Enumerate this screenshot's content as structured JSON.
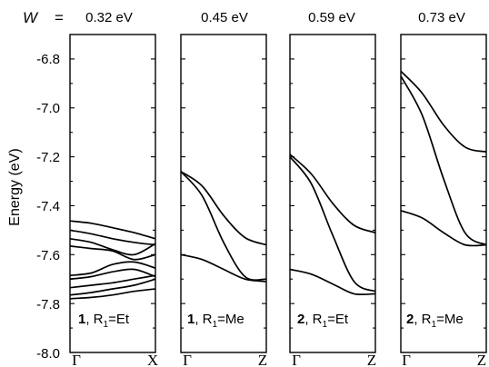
{
  "chart_data": {
    "type": "line",
    "w_symbol": "W",
    "w_equals": "=",
    "ylabel": "Energy (eV)",
    "ylim": [
      -8.0,
      -6.7
    ],
    "yticks": [
      "-6.8",
      "-7.0",
      "-7.2",
      "-7.4",
      "-7.6",
      "-7.8",
      "-8.0"
    ],
    "ytick_values": [
      -6.8,
      -7.0,
      -7.2,
      -7.4,
      -7.6,
      -7.8,
      -8.0
    ],
    "panels": [
      {
        "w_value": "0.32 eV",
        "label_num": "1",
        "label_mid": ", R",
        "label_sub": "1",
        "label_rest": "=Et",
        "x_start": "Γ",
        "x_end": "X",
        "series": [
          {
            "x": [
              0,
              0.25,
              0.5,
              0.75,
              1
            ],
            "y": [
              -7.462,
              -7.472,
              -7.49,
              -7.51,
              -7.535
            ]
          },
          {
            "x": [
              0,
              0.25,
              0.5,
              0.75,
              1
            ],
            "y": [
              -7.5,
              -7.515,
              -7.535,
              -7.55,
              -7.56
            ]
          },
          {
            "x": [
              0,
              0.25,
              0.5,
              0.75,
              1
            ],
            "y": [
              -7.535,
              -7.55,
              -7.58,
              -7.6,
              -7.555
            ]
          },
          {
            "x": [
              0,
              0.25,
              0.5,
              0.75,
              1
            ],
            "y": [
              -7.565,
              -7.575,
              -7.585,
              -7.62,
              -7.6
            ]
          },
          {
            "x": [
              0,
              0.25,
              0.5,
              0.75,
              1
            ],
            "y": [
              -7.685,
              -7.675,
              -7.64,
              -7.63,
              -7.655
            ]
          },
          {
            "x": [
              0,
              0.25,
              0.5,
              0.75,
              1
            ],
            "y": [
              -7.7,
              -7.69,
              -7.67,
              -7.66,
              -7.69
            ]
          },
          {
            "x": [
              0,
              0.25,
              0.5,
              0.75,
              1
            ],
            "y": [
              -7.735,
              -7.725,
              -7.715,
              -7.7,
              -7.685
            ]
          },
          {
            "x": [
              0,
              0.25,
              0.5,
              0.75,
              1
            ],
            "y": [
              -7.765,
              -7.755,
              -7.74,
              -7.725,
              -7.7
            ]
          },
          {
            "x": [
              0,
              0.25,
              0.5,
              0.75,
              1
            ],
            "y": [
              -7.78,
              -7.775,
              -7.765,
              -7.75,
              -7.74
            ]
          }
        ]
      },
      {
        "w_value": "0.45 eV",
        "label_num": "1",
        "label_mid": ", R",
        "label_sub": "1",
        "label_rest": "=Me",
        "x_start": "Γ",
        "x_end": "Z",
        "series": [
          {
            "x": [
              0,
              0.25,
              0.5,
              0.75,
              1
            ],
            "y": [
              -7.26,
              -7.32,
              -7.44,
              -7.53,
              -7.56
            ]
          },
          {
            "x": [
              0,
              0.25,
              0.5,
              0.75,
              1
            ],
            "y": [
              -7.26,
              -7.36,
              -7.55,
              -7.69,
              -7.7
            ]
          },
          {
            "x": [
              0,
              0.25,
              0.5,
              0.75,
              1
            ],
            "y": [
              -7.6,
              -7.62,
              -7.66,
              -7.7,
              -7.71
            ]
          }
        ]
      },
      {
        "w_value": "0.59 eV",
        "label_num": "2",
        "label_mid": ", R",
        "label_sub": "1",
        "label_rest": "=Et",
        "x_start": "Γ",
        "x_end": "Z",
        "series": [
          {
            "x": [
              0,
              0.25,
              0.5,
              0.75,
              1
            ],
            "y": [
              -7.19,
              -7.27,
              -7.39,
              -7.48,
              -7.51
            ]
          },
          {
            "x": [
              0,
              0.25,
              0.5,
              0.75,
              1
            ],
            "y": [
              -7.2,
              -7.31,
              -7.52,
              -7.71,
              -7.75
            ]
          },
          {
            "x": [
              0,
              0.25,
              0.5,
              0.75,
              1
            ],
            "y": [
              -7.66,
              -7.68,
              -7.72,
              -7.76,
              -7.76
            ]
          }
        ]
      },
      {
        "w_value": "0.73 eV",
        "label_num": "2",
        "label_mid": ", R",
        "label_sub": "1",
        "label_rest": "=Me",
        "x_start": "Γ",
        "x_end": "Z",
        "series": [
          {
            "x": [
              0,
              0.25,
              0.5,
              0.75,
              1
            ],
            "y": [
              -6.85,
              -6.94,
              -7.07,
              -7.16,
              -7.18
            ]
          },
          {
            "x": [
              0,
              0.25,
              0.5,
              0.75,
              1
            ],
            "y": [
              -6.87,
              -7.03,
              -7.29,
              -7.51,
              -7.56
            ]
          },
          {
            "x": [
              0,
              0.25,
              0.5,
              0.75,
              1
            ],
            "y": [
              -7.42,
              -7.45,
              -7.51,
              -7.56,
              -7.56
            ]
          }
        ]
      }
    ],
    "grid": false,
    "legend": "none"
  }
}
